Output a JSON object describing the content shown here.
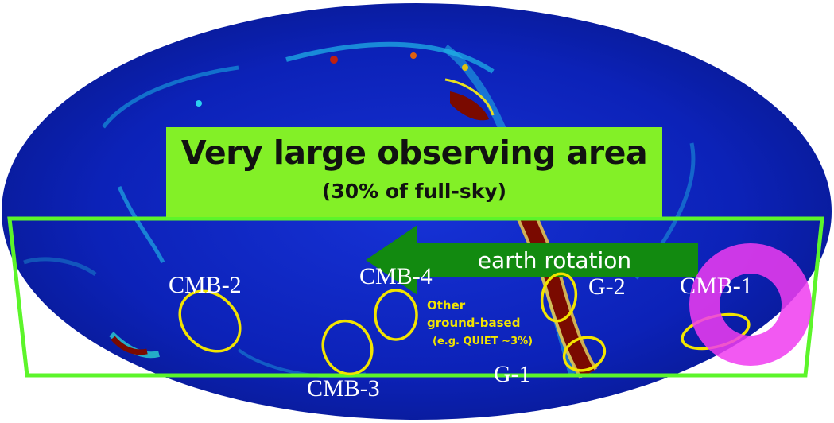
{
  "title": {
    "main": "Very large observing area",
    "sub": "(30% of full-sky)"
  },
  "arrow": {
    "label": "earth rotation",
    "direction": "left"
  },
  "fields": [
    {
      "id": "cmb-2",
      "label": "CMB-2"
    },
    {
      "id": "cmb-4",
      "label": "CMB-4"
    },
    {
      "id": "cmb-3",
      "label": "CMB-3"
    },
    {
      "id": "g-2",
      "label": "G-2"
    },
    {
      "id": "g-1",
      "label": "G-1"
    },
    {
      "id": "cmb-1",
      "label": "CMB-1"
    }
  ],
  "other_ground_based": {
    "line1": "Other",
    "line2": "ground-based",
    "line3": "(e.g. QUIET ~3%)"
  },
  "colors": {
    "sky_background": "#0b1fb0",
    "box_green": "#83f027",
    "band_outline": "#5cf52a",
    "arrow_green": "#128a10",
    "field_outline": "#f2e400",
    "galactic_plane": "#7a0a00",
    "marker_magenta": "#f03cf0"
  }
}
